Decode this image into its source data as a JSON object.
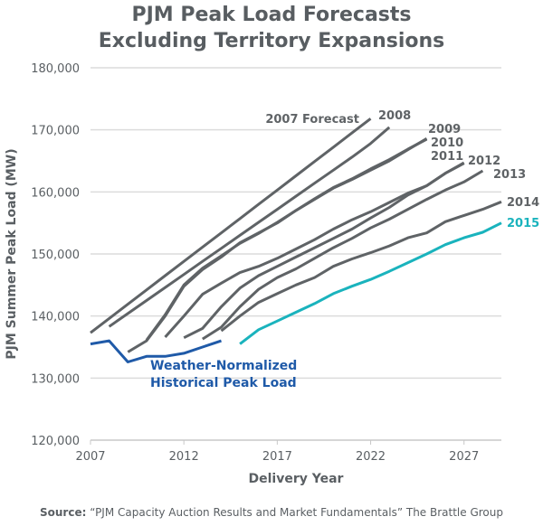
{
  "chart_data": {
    "type": "line",
    "title": [
      "PJM Peak Load Forecasts",
      "Excluding Territory Expansions"
    ],
    "xlabel": "Delivery Year",
    "ylabel": "PJM Summer Peak Load (MW)",
    "xlim": [
      2007,
      2029
    ],
    "ylim": [
      120000,
      180000
    ],
    "xticks": [
      2007,
      2012,
      2017,
      2022,
      2027
    ],
    "yticks": [
      120000,
      130000,
      140000,
      150000,
      160000,
      170000,
      180000
    ],
    "ytick_labels": [
      "120,000",
      "130,000",
      "140,000",
      "150,000",
      "160,000",
      "170,000",
      "180,000"
    ],
    "grid": "horizontal",
    "colors": {
      "forecast": "#5f6366",
      "latest": "#1ab3bd",
      "historical": "#1f5aa8"
    },
    "series": [
      {
        "name": "2007 Forecast",
        "x0": 2007,
        "values": [
          137300,
          139600,
          141900,
          144200,
          146500,
          148800,
          151100,
          153400,
          155700,
          158000,
          160300,
          162600,
          164900,
          167200,
          169500,
          171800
        ]
      },
      {
        "name": "2008",
        "x0": 2008,
        "values": [
          138300,
          140400,
          142500,
          144600,
          146700,
          148800,
          150900,
          153000,
          155100,
          157200,
          159300,
          161400,
          163500,
          165600,
          167800,
          170400
        ]
      },
      {
        "name": "2009",
        "x0": 2009,
        "values": [
          134200,
          136000,
          140000,
          144800,
          147500,
          149500,
          151800,
          153400,
          155000,
          157000,
          158800,
          160600,
          162000,
          163500,
          165000,
          166800,
          168600
        ]
      },
      {
        "name": "2010",
        "x0": 2010,
        "values": [
          136100,
          140200,
          145000,
          147700,
          149700,
          151700,
          153300,
          155100,
          157000,
          158900,
          160700,
          162100,
          163700,
          165200,
          166900,
          168500
        ]
      },
      {
        "name": "2011",
        "x0": 2011,
        "values": [
          136600,
          140000,
          143500,
          145300,
          147000,
          148000,
          149300,
          150800,
          152300,
          154000,
          155500,
          156800,
          158300,
          159800,
          161000,
          163000,
          164700
        ]
      },
      {
        "name": "2012",
        "x0": 2012,
        "values": [
          136500,
          138000,
          141500,
          144500,
          146500,
          148000,
          149500,
          151000,
          152500,
          154000,
          155800,
          157500,
          159500,
          161000,
          163000,
          164600
        ]
      },
      {
        "name": "2013",
        "x0": 2013,
        "values": [
          136300,
          138200,
          141500,
          144300,
          146200,
          147600,
          149300,
          151000,
          152500,
          154200,
          155600,
          157200,
          158800,
          160300,
          161600,
          163400
        ]
      },
      {
        "name": "2014",
        "x0": 2014,
        "values": [
          137600,
          140000,
          142200,
          143600,
          145000,
          146200,
          148000,
          149200,
          150200,
          151300,
          152600,
          153400,
          155200,
          156200,
          157200,
          158400
        ]
      },
      {
        "name": "2015",
        "x0": 2015,
        "values": [
          135500,
          137800,
          139200,
          140600,
          142000,
          143600,
          144800,
          145900,
          147200,
          148600,
          150000,
          151500,
          152600,
          153500,
          155000
        ]
      },
      {
        "name": "Weather-Normalized Historical Peak Load",
        "label_lines": [
          "Weather-Normalized",
          "Historical Peak Load"
        ],
        "x0": 2007,
        "values": [
          135500,
          136000,
          132600,
          133500,
          133500,
          134000,
          135000,
          136000
        ]
      }
    ]
  },
  "source": {
    "prefix": "Source:",
    "text": " “PJM Capacity Auction Results and Market Fundamentals” The Brattle Group"
  }
}
